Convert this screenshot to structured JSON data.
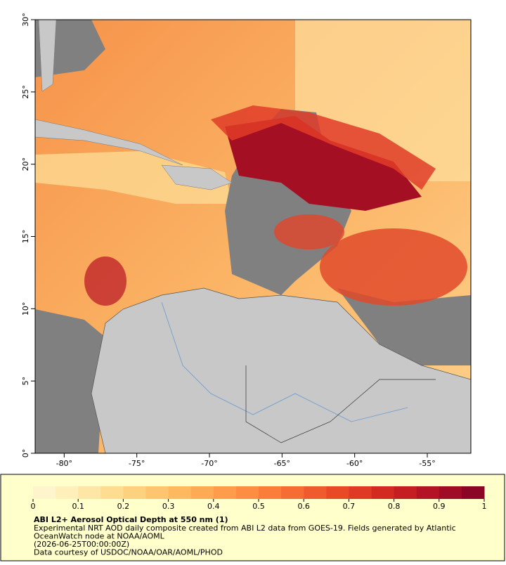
{
  "map": {
    "lon_lim": [
      -82,
      -52
    ],
    "lat_lim": [
      0,
      30
    ],
    "lon_ticks": [
      {
        "value": -80,
        "label": "-80°"
      },
      {
        "value": -75,
        "label": "-75°"
      },
      {
        "value": -70,
        "label": "-70°"
      },
      {
        "value": -65,
        "label": "-65°"
      },
      {
        "value": -60,
        "label": "-60°"
      },
      {
        "value": -55,
        "label": "-55°"
      }
    ],
    "lat_ticks": [
      {
        "value": 0,
        "label": "0°"
      },
      {
        "value": 5,
        "label": "5°"
      },
      {
        "value": 10,
        "label": "10°"
      },
      {
        "value": 15,
        "label": "15°"
      },
      {
        "value": 20,
        "label": "20°"
      },
      {
        "value": 25,
        "label": "25°"
      },
      {
        "value": 30,
        "label": "30°"
      }
    ]
  },
  "colorbar": {
    "lim": [
      0,
      1
    ],
    "ticks": [
      0,
      0.1,
      0.2,
      0.3,
      0.4,
      0.5,
      0.6,
      0.7,
      0.8,
      0.9,
      1
    ],
    "colors": [
      "#fff5cc",
      "#ffefbb",
      "#ffe6a6",
      "#fedc92",
      "#fed17f",
      "#fec56e",
      "#feb860",
      "#fdaa55",
      "#fd9c4b",
      "#fc8d42",
      "#fa7d3a",
      "#f66c33",
      "#f05b2d",
      "#e84a28",
      "#de3a24",
      "#d22a21",
      "#c41d22",
      "#b31324",
      "#a00b25",
      "#8a0624"
    ]
  },
  "caption": {
    "title": "ABI L2+ Aerosol Optical Depth at 550 nm (1)",
    "lines": [
      "Experimental NRT AOD daily composite created from ABI L2 data from GOES-19. Fields generated by Atlantic",
      "OceanWatch node at NOAA/AOML",
      "(2026-06-25T00:00:00Z)",
      "Data courtesy of USDOC/NOAA/OAR/AOML/PHOD"
    ]
  }
}
